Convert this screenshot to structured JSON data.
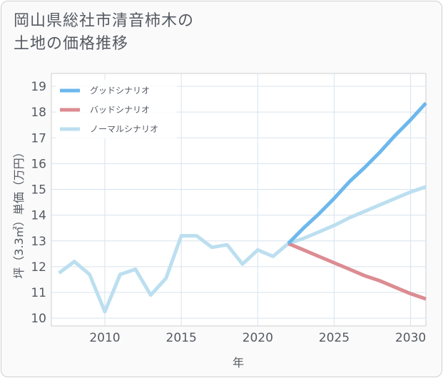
{
  "title_lines": [
    "岡山県総社市清音柿木の",
    "土地の価格推移"
  ],
  "chart_data": {
    "type": "line",
    "xlabel": "年",
    "ylabel": "坪（3.3㎡）単価（万円）",
    "xlim": [
      2006.5,
      2031
    ],
    "ylim": [
      9.7,
      19.5
    ],
    "x_ticks": [
      2010,
      2015,
      2020,
      2025,
      2030
    ],
    "y_ticks": [
      10,
      11,
      12,
      13,
      14,
      15,
      16,
      17,
      18,
      19
    ],
    "grid": true,
    "legend_position": "top-left",
    "series": [
      {
        "name": "グッドシナリオ",
        "color": "#6cb8ec",
        "x": [
          2022,
          2023,
          2024,
          2025,
          2026,
          2027,
          2028,
          2029,
          2030,
          2031
        ],
        "y": [
          12.9,
          13.5,
          14.05,
          14.65,
          15.3,
          15.85,
          16.45,
          17.1,
          17.7,
          18.35
        ]
      },
      {
        "name": "バッドシナリオ",
        "color": "#dc8c92",
        "x": [
          2022,
          2023,
          2024,
          2025,
          2026,
          2027,
          2028,
          2029,
          2030,
          2031
        ],
        "y": [
          12.9,
          12.65,
          12.4,
          12.15,
          11.9,
          11.65,
          11.45,
          11.2,
          10.95,
          10.75
        ]
      },
      {
        "name": "ノーマルシナリオ",
        "color": "#bcdff0",
        "x": [
          2007,
          2008,
          2009,
          2010,
          2011,
          2012,
          2013,
          2014,
          2015,
          2016,
          2017,
          2018,
          2019,
          2020,
          2021,
          2022,
          2023,
          2024,
          2025,
          2026,
          2027,
          2028,
          2029,
          2030,
          2031
        ],
        "y": [
          11.75,
          12.2,
          11.7,
          10.25,
          11.7,
          11.9,
          10.9,
          11.55,
          13.2,
          13.2,
          12.75,
          12.85,
          12.1,
          12.65,
          12.4,
          12.9,
          13.1,
          13.35,
          13.6,
          13.9,
          14.15,
          14.4,
          14.65,
          14.9,
          15.1
        ]
      }
    ]
  }
}
